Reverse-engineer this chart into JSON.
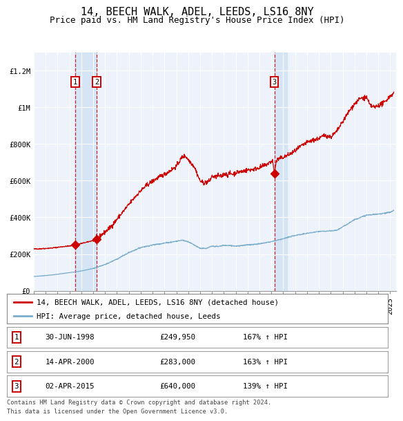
{
  "title": "14, BEECH WALK, ADEL, LEEDS, LS16 8NY",
  "subtitle": "Price paid vs. HM Land Registry's House Price Index (HPI)",
  "ylim": [
    0,
    1300000
  ],
  "xlim_start": 1995.0,
  "xlim_end": 2025.5,
  "background_color": "#ffffff",
  "plot_bg_color": "#eef2fa",
  "grid_color": "#ffffff",
  "sale_dates": [
    1998.497,
    2000.288,
    2015.249
  ],
  "sale_prices": [
    249950,
    283000,
    640000
  ],
  "sale_labels": [
    "1",
    "2",
    "3"
  ],
  "shade_ranges": [
    [
      1998.497,
      2000.288
    ],
    [
      2015.249,
      2016.3
    ]
  ],
  "legend_line1": "14, BEECH WALK, ADEL, LEEDS, LS16 8NY (detached house)",
  "legend_line2": "HPI: Average price, detached house, Leeds",
  "table_rows": [
    [
      "1",
      "30-JUN-1998",
      "£249,950",
      "167% ↑ HPI"
    ],
    [
      "2",
      "14-APR-2000",
      "£283,000",
      "163% ↑ HPI"
    ],
    [
      "3",
      "02-APR-2015",
      "£640,000",
      "139% ↑ HPI"
    ]
  ],
  "footnote1": "Contains HM Land Registry data © Crown copyright and database right 2024.",
  "footnote2": "This data is licensed under the Open Government Licence v3.0.",
  "red_color": "#cc0000",
  "blue_color": "#7aadcc",
  "title_fontsize": 11,
  "subtitle_fontsize": 9,
  "tick_fontsize": 7.5
}
